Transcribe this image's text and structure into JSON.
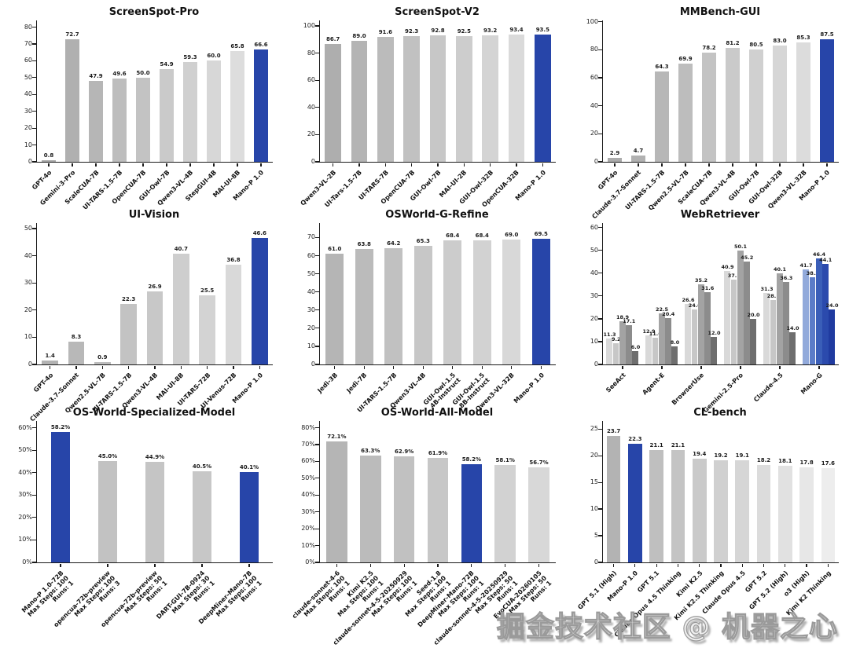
{
  "watermark": {
    "text": "掘金技术社区 @ 机器之心"
  },
  "colors": {
    "highlight_blue": "#2745a9",
    "axis": "#1a1a1a",
    "background": "#ffffff"
  },
  "chart_data": [
    {
      "id": "screenspot-pro",
      "title": "ScreenSpot-Pro",
      "type": "bar",
      "categories": [
        "GPT-4o",
        "Gemini-3-Pro",
        "ScaleCUA-7B",
        "UI-TARS-1.5-7B",
        "OpenCUA-7B",
        "GUI-Owl-7B",
        "Qwen3-VL-4B",
        "StepGUI-4B",
        "MAI-UI-8B",
        "Mano-P 1.0"
      ],
      "values": [
        0.8,
        72.7,
        47.9,
        49.6,
        50.0,
        54.9,
        59.3,
        60.0,
        65.8,
        66.6
      ],
      "highlight": [
        9
      ],
      "gray_start": "#a9a9a9",
      "gray_end": "#e4e4e4",
      "highlight_color": "#2745a9",
      "yticks": [
        0,
        10,
        20,
        30,
        40,
        50,
        60,
        70,
        80
      ],
      "ymax": 84,
      "percent": false,
      "bar_ratio": 0.62,
      "grid": false,
      "legend": "none",
      "ylabel": "",
      "xlabel": ""
    },
    {
      "id": "screenspot-v2",
      "title": "ScreenSpot-V2",
      "type": "bar",
      "categories": [
        "Qwen3-VL-2B",
        "UI-Tars-1.5-7B",
        "UI-TARS-7B",
        "OpenCUA-7B",
        "GUI-Owl-7B",
        "MAI-UI-2B",
        "GUI-Owl-32B",
        "OpenCUA-32B",
        "Mano-P 1.0"
      ],
      "values": [
        86.7,
        89.0,
        91.6,
        92.3,
        92.8,
        92.5,
        93.2,
        93.4,
        93.5
      ],
      "highlight": [
        8
      ],
      "gray_start": "#aeaeae",
      "gray_end": "#e0e0e0",
      "highlight_color": "#2745a9",
      "yticks": [
        0,
        20,
        40,
        60,
        80,
        100
      ],
      "ymax": 104,
      "percent": false,
      "bar_ratio": 0.62,
      "grid": false,
      "legend": "none",
      "ylabel": "",
      "xlabel": ""
    },
    {
      "id": "mmbench-gui",
      "title": "MMBench-GUI",
      "type": "bar",
      "categories": [
        "GPT-4o",
        "Claude-3.7-Sonnet",
        "UI-TARS-1.5-7B",
        "Qwen2.5-VL-7B",
        "ScaleCUA-7B",
        "Qwen3-VL-4B",
        "GUI-Owl-7B",
        "GUI-Owl-32B",
        "Qwen3-VL-32B",
        "Mano-P 1.0"
      ],
      "values": [
        2.9,
        4.7,
        64.3,
        69.9,
        78.2,
        81.2,
        80.5,
        83.0,
        85.3,
        87.5
      ],
      "highlight": [
        9
      ],
      "gray_start": "#ababab",
      "gray_end": "#e2e2e2",
      "highlight_color": "#2745a9",
      "yticks": [
        0,
        20,
        40,
        60,
        80,
        100
      ],
      "ymax": 101,
      "percent": false,
      "bar_ratio": 0.62,
      "grid": false,
      "legend": "none",
      "ylabel": "",
      "xlabel": ""
    },
    {
      "id": "ui-vision",
      "title": "UI-Vision",
      "type": "bar",
      "categories": [
        "GPT-4o",
        "Claude-3.7-Sonnet",
        "Qwen2.5-VL-7B",
        "UI-TARS-1.5-7B",
        "Qwen3-VL-4B",
        "MAI-UI-8B",
        "UI-TARS-72B",
        "UI-Venus-72B",
        "Mano-P 1.0"
      ],
      "values": [
        1.4,
        8.3,
        0.9,
        22.3,
        26.9,
        40.7,
        25.5,
        36.8,
        46.6
      ],
      "highlight": [
        8
      ],
      "gray_start": "#b2b2b2",
      "gray_end": "#dedede",
      "highlight_color": "#2745a9",
      "yticks": [
        0,
        10,
        20,
        30,
        40,
        50
      ],
      "ymax": 52,
      "percent": false,
      "bar_ratio": 0.62,
      "grid": false,
      "legend": "none",
      "ylabel": "",
      "xlabel": ""
    },
    {
      "id": "osworld-g-refine",
      "title": "OSWorld-G-Refine",
      "type": "bar",
      "categories": [
        "Jedi-3B",
        "Jedi-7B",
        "UI-TARS-1.5-7B",
        "Qwen3-VL-4B",
        [
          "GUI-Owl-1.5",
          "4B-Instruct"
        ],
        [
          "GUI-Owl-1.5",
          "8B-Instruct"
        ],
        "Qwen3-VL-32B",
        "Mano-P 1.0"
      ],
      "values": [
        61.0,
        63.8,
        64.2,
        65.3,
        68.4,
        68.4,
        69.0,
        69.5
      ],
      "highlight": [
        7
      ],
      "gray_start": "#b5b5b5",
      "gray_end": "#dedede",
      "highlight_color": "#2745a9",
      "yticks": [
        0,
        10,
        20,
        30,
        40,
        50,
        60,
        70
      ],
      "ymax": 78,
      "percent": false,
      "bar_ratio": 0.62,
      "grid": false,
      "legend": "none",
      "ylabel": "",
      "xlabel": ""
    },
    {
      "id": "webretriever",
      "title": "WebRetriever",
      "type": "grouped_bar",
      "groups": [
        "SeeAct",
        "Agent-E",
        "BrowserUse",
        "Gemini-2.5-Pro",
        "Claude-4.5",
        "Mano-G"
      ],
      "series_values": [
        [
          11.3,
          9.2,
          18.9,
          17.1,
          6.0
        ],
        [
          12.9,
          11.6,
          22.5,
          20.4,
          8.0
        ],
        [
          26.6,
          24.0,
          35.2,
          31.6,
          12.0
        ],
        [
          40.9,
          37.1,
          50.1,
          45.2,
          20.0
        ],
        [
          31.3,
          28.1,
          40.1,
          36.3,
          14.0
        ],
        [
          41.7,
          38.3,
          46.4,
          44.1,
          24.0
        ]
      ],
      "gray_colors": [
        "#d9d9d9",
        "#c7c7c7",
        "#a3a3a3",
        "#8c8c8c",
        "#6e6e6e"
      ],
      "blue_colors": [
        "#92aadb",
        "#5b7cc8",
        "#3a5eb8",
        "#2b4aad",
        "#203ba0"
      ],
      "highlight_group": 5,
      "yticks": [
        0,
        10,
        20,
        30,
        40,
        50,
        60
      ],
      "ymax": 62,
      "percent": false,
      "grid": false,
      "legend": "none",
      "ylabel": "",
      "xlabel": ""
    },
    {
      "id": "os-world-specialized-model",
      "title": "OS-World-Specialized-Model",
      "type": "bar",
      "categories": [
        [
          "Mano-P 1.0-72B",
          "Max Steps: 100",
          "Runs: 1"
        ],
        [
          "opencua-72b-preview",
          "Max Steps: 100",
          "Runs: 3"
        ],
        [
          "opencua-72b-preview",
          "Max Steps: 50",
          "Runs: 1"
        ],
        [
          "DART-GUI-7B-0924",
          "Max Steps: 30",
          "Runs: 1"
        ],
        [
          "DeepMiner-Mano-7B",
          "Max Steps: 100",
          "Runs: 1"
        ]
      ],
      "values": [
        58.2,
        45.0,
        44.9,
        40.5,
        40.1
      ],
      "highlight": [
        0,
        4
      ],
      "gray_start": "#c0c0c0",
      "gray_end": "#c9c9c9",
      "highlight_color": "#2745a9",
      "yticks": [
        0,
        10,
        20,
        30,
        40,
        50,
        60
      ],
      "ymax": 63,
      "percent": true,
      "bar_ratio": 0.4,
      "grid": false,
      "legend": "none",
      "ylabel": "",
      "xlabel": ""
    },
    {
      "id": "os-world-all-model",
      "title": "OS-World-All-Model",
      "type": "bar",
      "categories": [
        [
          "claude-sonnet-4-6",
          "Max Steps: 100",
          "Runs: 1"
        ],
        [
          "Kimi K2.5",
          "Max Steps: 100",
          "Runs: 1"
        ],
        [
          "claude-sonnet-4-5-20250929",
          "Max Steps: 100",
          "Runs: 1"
        ],
        [
          "Seed-1.8",
          "Max Steps: 100",
          "Runs: 1"
        ],
        [
          "DeepMiner-Mano-72B",
          "Max Steps: 100",
          "Runs: 1"
        ],
        [
          "claude-sonnet-4-5-20250929",
          "Max Steps: 50",
          "Runs: 1"
        ],
        [
          "EvoCUA-20260105",
          "Max Steps: 50",
          "Runs: 1"
        ]
      ],
      "values": [
        72.1,
        63.3,
        62.9,
        61.9,
        58.2,
        58.1,
        56.7
      ],
      "highlight": [
        4
      ],
      "gray_start": "#b5b5b5",
      "gray_end": "#d8d8d8",
      "highlight_color": "#2745a9",
      "yticks": [
        0,
        10,
        20,
        30,
        40,
        50,
        60,
        70,
        80
      ],
      "ymax": 84,
      "percent": true,
      "bar_ratio": 0.62,
      "grid": false,
      "legend": "none",
      "ylabel": "",
      "xlabel": ""
    },
    {
      "id": "cl-bench",
      "title": "CL-bench",
      "type": "bar",
      "categories": [
        "GPT 5.1 (High)",
        "Mano-P 1.0",
        "GPT 5.1",
        "Claude Opus 4.5 Thinking",
        "Kimi K2.5",
        "Kimi K2.5 Thinking",
        "Claude Opus 4.5",
        "GPT 5.2",
        "GPT 5.2 (High)",
        "o3 (High)",
        "Kimi K2 Thinking"
      ],
      "values": [
        23.7,
        22.3,
        21.1,
        21.1,
        19.4,
        19.2,
        19.1,
        18.2,
        18.1,
        17.8,
        17.6
      ],
      "highlight": [
        1
      ],
      "gray_start": "#b3b3b3",
      "gray_end": "#ededed",
      "highlight_color": "#2745a9",
      "yticks": [
        0,
        5,
        10,
        15,
        20,
        25
      ],
      "ymax": 26.5,
      "percent": false,
      "bar_ratio": 0.65,
      "grid": false,
      "legend": "none",
      "ylabel": "",
      "xlabel": ""
    }
  ]
}
